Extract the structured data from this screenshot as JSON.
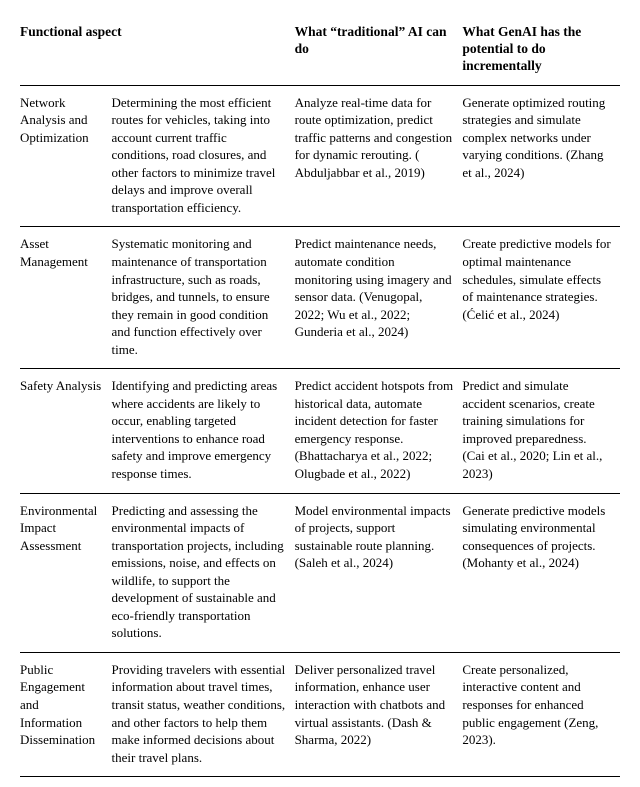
{
  "table": {
    "headers": [
      "Functional aspect",
      "",
      "What “traditional” AI can do",
      "What GenAI has the potential to do incrementally"
    ],
    "rows": [
      {
        "aspect": "Network Analysis and Optimization",
        "description": "Determining the most efficient routes for vehicles, taking into account current traffic conditions, road closures, and other factors to minimize travel delays and improve overall transportation efficiency.",
        "traditional": "Analyze real-time data for route optimization, predict traffic patterns and congestion for dynamic rerouting. ( Abduljabbar et al., 2019)",
        "genai": "Generate optimized routing strategies and simulate complex networks under varying conditions.  (Zhang et al., 2024)"
      },
      {
        "aspect": "Asset Management",
        "description": "Systematic monitoring and maintenance of transportation infrastructure, such as roads, bridges, and tunnels, to ensure they remain in good condition and function effectively over time.",
        "traditional": "Predict maintenance needs, automate condition monitoring using imagery and sensor data. (Venugopal, 2022; Wu et al., 2022; Gunderia et al., 2024)",
        "genai": "Create predictive models for optimal maintenance schedules, simulate effects of maintenance strategies. (Ćelić et al., 2024)"
      },
      {
        "aspect": "Safety Analysis",
        "description": "Identifying and predicting areas where accidents are likely to occur, enabling targeted interventions to enhance road safety and improve emergency response times.",
        "traditional": "Predict accident hotspots from historical data, automate incident detection for faster emergency response. (Bhattacharya et al., 2022; Olugbade et al., 2022)",
        "genai": "Predict and simulate accident scenarios, create training simulations for improved preparedness. (Cai et al., 2020; Lin et al., 2023)"
      },
      {
        "aspect": "Environmental Impact Assessment",
        "description": "Predicting and assessing the environmental impacts of transportation projects, including emissions, noise, and effects on wildlife, to support the development of sustainable and eco-friendly transportation solutions.",
        "traditional": "Model environmental impacts of projects, support sustainable route planning. (Saleh et al., 2024)",
        "genai": "Generate predictive models simulating environmental consequences of projects. (Mohanty et al., 2024)"
      },
      {
        "aspect": "Public Engagement and Information Dissemination",
        "description": "Providing travelers with essential information about travel times, transit status, weather conditions, and other factors to help them make informed decisions about their travel plans.",
        "traditional": "Deliver personalized travel information, enhance user interaction with chatbots and virtual assistants. (Dash & Sharma, 2022)",
        "genai": "Create personalized, interactive content and responses for enhanced public engagement (Zeng, 2023)."
      }
    ]
  }
}
